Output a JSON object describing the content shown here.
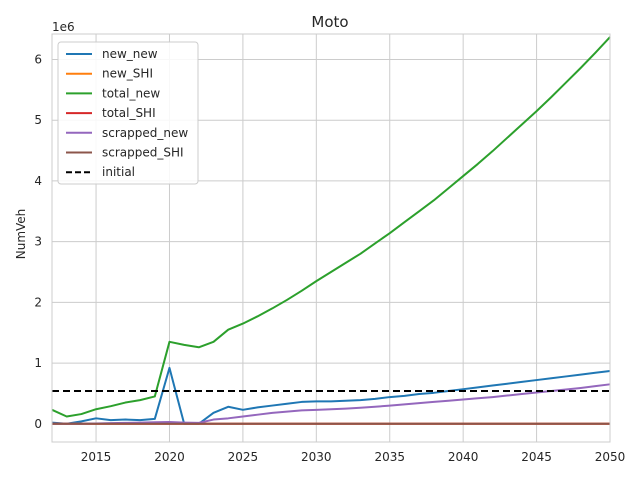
{
  "chart_data": {
    "type": "line",
    "title": "Moto",
    "xlabel": "",
    "ylabel": "NumVeh",
    "y_offset_label": "1e6",
    "xlim": [
      2012,
      2050
    ],
    "ylim": [
      -300000,
      6420000
    ],
    "x_ticks": [
      2015,
      2020,
      2025,
      2030,
      2035,
      2040,
      2045,
      2050
    ],
    "y_ticks": [
      0,
      1000000,
      2000000,
      3000000,
      4000000,
      5000000,
      6000000
    ],
    "y_tick_labels": [
      "0",
      "1",
      "2",
      "3",
      "4",
      "5",
      "6"
    ],
    "grid": true,
    "legend_position": "top-left",
    "x": [
      2012,
      2013,
      2014,
      2015,
      2016,
      2017,
      2018,
      2019,
      2020,
      2021,
      2022,
      2023,
      2024,
      2025,
      2026,
      2027,
      2028,
      2029,
      2030,
      2031,
      2032,
      2033,
      2034,
      2035,
      2036,
      2037,
      2038,
      2039,
      2040,
      2041,
      2042,
      2043,
      2044,
      2045,
      2046,
      2047,
      2048,
      2049,
      2050
    ],
    "series": [
      {
        "name": "new_new",
        "color": "#1f77b4",
        "dashed": false,
        "values": [
          20000,
          0,
          40000,
          90000,
          60000,
          70000,
          60000,
          80000,
          920000,
          0,
          0,
          180000,
          280000,
          230000,
          270000,
          300000,
          330000,
          360000,
          370000,
          370000,
          380000,
          390000,
          410000,
          440000,
          460000,
          490000,
          510000,
          540000,
          570000,
          600000,
          630000,
          660000,
          690000,
          720000,
          750000,
          780000,
          810000,
          840000,
          870000
        ]
      },
      {
        "name": "new_SHI",
        "color": "#ff7f0e",
        "dashed": false,
        "values": [
          0,
          0,
          0,
          0,
          0,
          0,
          0,
          0,
          0,
          0,
          0,
          0,
          0,
          0,
          0,
          0,
          0,
          0,
          0,
          0,
          0,
          0,
          0,
          0,
          0,
          0,
          0,
          0,
          0,
          0,
          0,
          0,
          0,
          0,
          0,
          0,
          0,
          0,
          0
        ]
      },
      {
        "name": "total_new",
        "color": "#2ca02c",
        "dashed": false,
        "values": [
          230000,
          120000,
          160000,
          240000,
          290000,
          350000,
          390000,
          450000,
          1350000,
          1300000,
          1260000,
          1350000,
          1550000,
          1650000,
          1770000,
          1900000,
          2040000,
          2190000,
          2350000,
          2500000,
          2650000,
          2800000,
          2970000,
          3140000,
          3320000,
          3500000,
          3680000,
          3880000,
          4080000,
          4280000,
          4490000,
          4710000,
          4930000,
          5150000,
          5380000,
          5620000,
          5860000,
          6110000,
          6370000
        ]
      },
      {
        "name": "total_SHI",
        "color": "#d62728",
        "dashed": false,
        "values": [
          0,
          0,
          0,
          0,
          0,
          0,
          0,
          0,
          0,
          0,
          0,
          0,
          0,
          0,
          0,
          0,
          0,
          0,
          0,
          0,
          0,
          0,
          0,
          0,
          0,
          0,
          0,
          0,
          0,
          0,
          0,
          0,
          0,
          0,
          0,
          0,
          0,
          0,
          0
        ]
      },
      {
        "name": "scrapped_new",
        "color": "#9467bd",
        "dashed": false,
        "values": [
          0,
          0,
          0,
          5000,
          10000,
          15000,
          20000,
          25000,
          30000,
          20000,
          15000,
          70000,
          90000,
          120000,
          150000,
          180000,
          200000,
          220000,
          230000,
          240000,
          250000,
          265000,
          280000,
          300000,
          320000,
          340000,
          360000,
          380000,
          400000,
          420000,
          440000,
          465000,
          490000,
          515000,
          540000,
          565000,
          590000,
          620000,
          650000
        ]
      },
      {
        "name": "scrapped_SHI",
        "color": "#8c564b",
        "dashed": false,
        "values": [
          0,
          0,
          0,
          0,
          0,
          0,
          0,
          0,
          0,
          0,
          0,
          0,
          0,
          0,
          0,
          0,
          0,
          0,
          0,
          0,
          0,
          0,
          0,
          0,
          0,
          0,
          0,
          0,
          0,
          0,
          0,
          0,
          0,
          0,
          0,
          0,
          0,
          0,
          0
        ]
      },
      {
        "name": "initial",
        "color": "#000000",
        "dashed": true,
        "values": [
          540000,
          540000,
          540000,
          540000,
          540000,
          540000,
          540000,
          540000,
          540000,
          540000,
          540000,
          540000,
          540000,
          540000,
          540000,
          540000,
          540000,
          540000,
          540000,
          540000,
          540000,
          540000,
          540000,
          540000,
          540000,
          540000,
          540000,
          540000,
          540000,
          540000,
          540000,
          540000,
          540000,
          540000,
          540000,
          540000,
          540000,
          540000,
          540000
        ]
      }
    ]
  }
}
